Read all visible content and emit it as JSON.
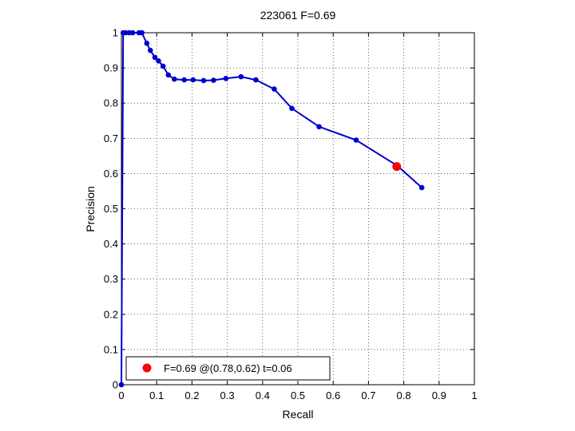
{
  "chart_data": {
    "type": "line",
    "title": "223061 F=0.69",
    "xlabel": "Recall",
    "ylabel": "Precision",
    "xlim": [
      0,
      1
    ],
    "ylim": [
      0,
      1
    ],
    "xticks": [
      "0",
      "0.1",
      "0.2",
      "0.3",
      "0.4",
      "0.5",
      "0.6",
      "0.7",
      "0.8",
      "0.9",
      "1"
    ],
    "yticks": [
      "0",
      "0.1",
      "0.2",
      "0.3",
      "0.4",
      "0.5",
      "0.6",
      "0.7",
      "0.8",
      "0.9",
      "1"
    ],
    "grid": true,
    "legend_position": "bottom-left",
    "series": [
      {
        "color": "#0000cc",
        "x": [
          0.0,
          0.005,
          0.012,
          0.022,
          0.032,
          0.05,
          0.058,
          0.072,
          0.082,
          0.095,
          0.105,
          0.118,
          0.133,
          0.15,
          0.178,
          0.203,
          0.233,
          0.261,
          0.296,
          0.339,
          0.381,
          0.433,
          0.483,
          0.56,
          0.665,
          0.782,
          0.851
        ],
        "y": [
          0.0,
          1.0,
          1.0,
          1.0,
          1.0,
          1.0,
          1.0,
          0.97,
          0.95,
          0.93,
          0.92,
          0.905,
          0.88,
          0.868,
          0.866,
          0.866,
          0.864,
          0.865,
          0.87,
          0.875,
          0.866,
          0.84,
          0.785,
          0.733,
          0.695,
          0.622,
          0.56
        ]
      }
    ],
    "best_point": {
      "x": 0.78,
      "y": 0.62,
      "color": "#ff0000"
    },
    "legend": [
      {
        "label": "F=0.69 @(0.78,0.62) t=0.06",
        "color": "#ff0000"
      }
    ]
  }
}
